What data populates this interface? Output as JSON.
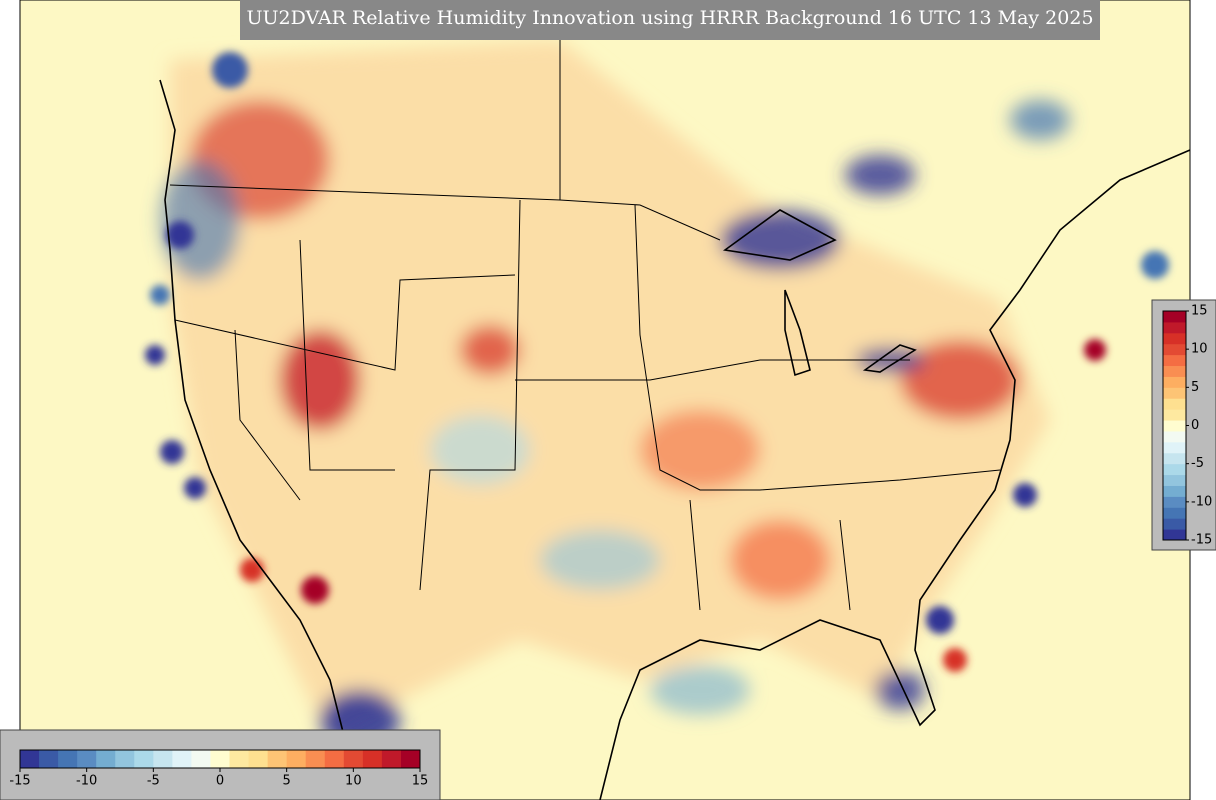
{
  "title": "UU2DVAR Relative Humidity Innovation using HRRR Background 16 UTC 13 May 2025",
  "colorbar": {
    "range": [
      -15,
      15
    ],
    "ticks": [
      -15,
      -10,
      -5,
      0,
      5,
      10,
      15
    ],
    "colormap": [
      "#313695",
      "#3a5aa6",
      "#4575b4",
      "#5a8cc2",
      "#74add1",
      "#92c5de",
      "#abd9e9",
      "#c6e5ef",
      "#e0f3f8",
      "#f3faf2",
      "#fffdd0",
      "#fee9a0",
      "#fee090",
      "#fdc475",
      "#fdae61",
      "#f98e52",
      "#f46d43",
      "#e34a33",
      "#d73027",
      "#c0192a",
      "#a50026"
    ]
  }
}
